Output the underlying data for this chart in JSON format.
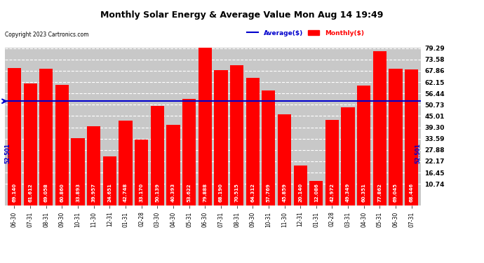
{
  "title": "Monthly Solar Energy & Average Value Mon Aug 14 19:49",
  "copyright": "Copyright 2023 Cartronics.com",
  "categories": [
    "06-30",
    "07-31",
    "08-31",
    "09-30",
    "10-31",
    "11-30",
    "12-31",
    "01-31",
    "02-28",
    "03-30",
    "04-30",
    "05-31",
    "06-30",
    "07-31",
    "08-31",
    "09-30",
    "10-31",
    "11-30",
    "12-31",
    "01-31",
    "02-28",
    "03-31",
    "04-30",
    "05-31",
    "06-30",
    "07-31"
  ],
  "values": [
    69.14,
    61.612,
    69.058,
    60.86,
    33.893,
    39.957,
    24.651,
    42.748,
    33.17,
    50.139,
    40.393,
    53.622,
    79.888,
    68.19,
    70.515,
    64.312,
    57.769,
    45.859,
    20.14,
    12.086,
    42.972,
    49.349,
    60.351,
    77.862,
    69.045,
    68.446
  ],
  "average": 52.501,
  "bar_color": "#ff0000",
  "avg_line_color": "#0000cc",
  "avg_label_color": "#0000cc",
  "monthly_label_color": "#ff0000",
  "background_color": "#c8c8c8",
  "plot_bg_color": "#c8c8c8",
  "fig_bg_color": "#ffffff",
  "grid_color": "#ffffff",
  "yticks": [
    10.74,
    16.45,
    22.17,
    27.88,
    33.59,
    39.3,
    45.01,
    50.73,
    56.44,
    62.15,
    67.86,
    73.58,
    79.29
  ],
  "avg_annotation": "52.501",
  "legend_avg": "Average($)",
  "legend_monthly": "Monthly($)"
}
